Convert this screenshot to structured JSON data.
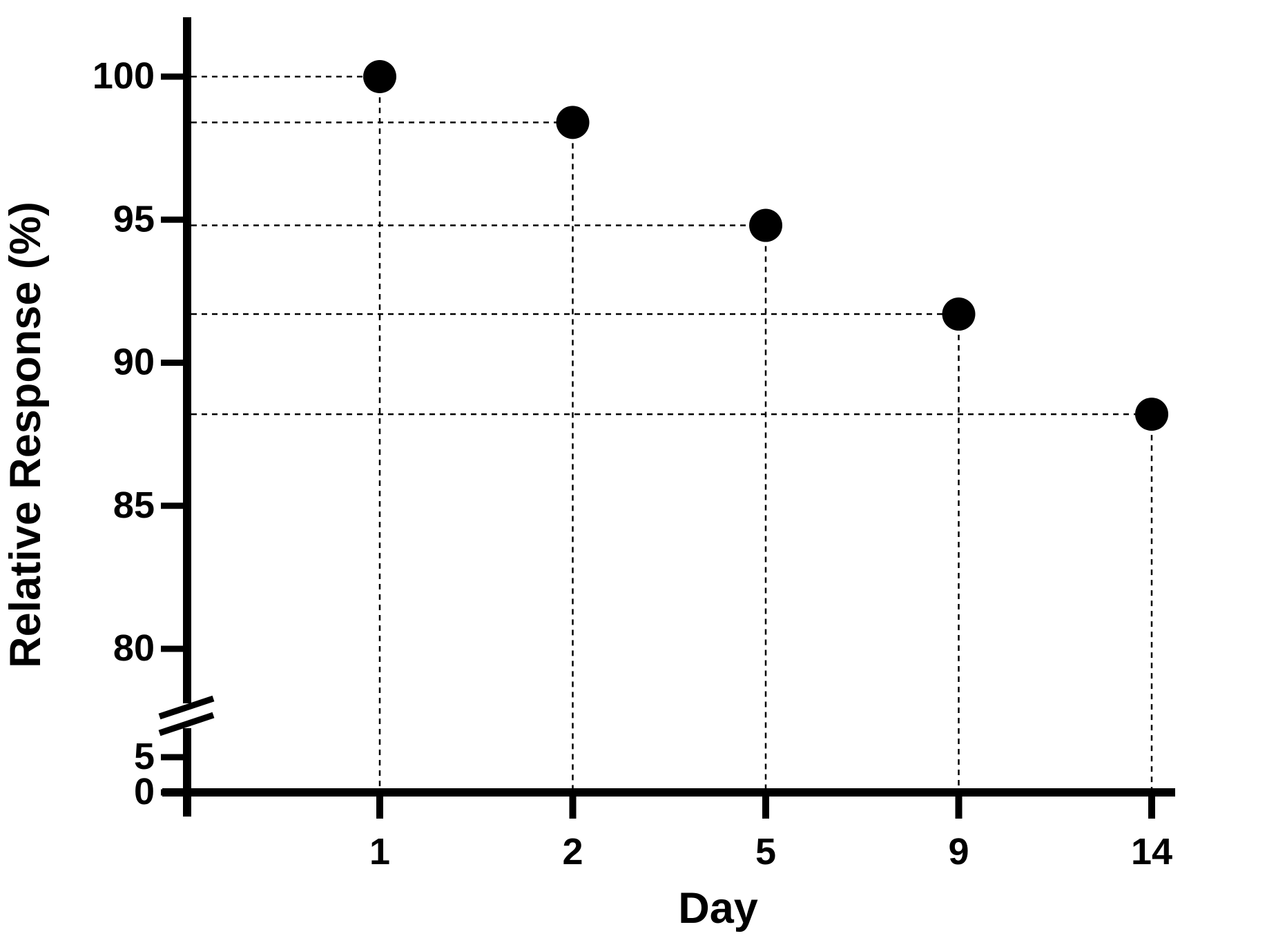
{
  "page": {
    "background_color": "#FFFFFF",
    "foreground_color": "#000000"
  },
  "chart_data": {
    "type": "scatter",
    "title": "",
    "xlabel": "Day",
    "ylabel": "Relative Response (%)",
    "x_scale": "categorical-equal-spacing",
    "categories": [
      "1",
      "2",
      "5",
      "9",
      "14"
    ],
    "x": [
      1,
      2,
      5,
      9,
      14
    ],
    "y": [
      100.0,
      98.4,
      94.8,
      91.7,
      88.2
    ],
    "points": [
      {
        "day": 1,
        "relative_response_pct": 100.0
      },
      {
        "day": 2,
        "relative_response_pct": 98.4
      },
      {
        "day": 5,
        "relative_response_pct": 94.8
      },
      {
        "day": 9,
        "relative_response_pct": 91.7
      },
      {
        "day": 14,
        "relative_response_pct": 88.2
      }
    ],
    "series": [
      {
        "name": "Relative Response",
        "values": [
          100.0,
          98.4,
          94.8,
          91.7,
          88.2
        ]
      }
    ],
    "marker": {
      "shape": "filled-circle",
      "color": "#000000"
    },
    "guide_lines": {
      "style": "dotted",
      "color": "#000000",
      "from_point_to_y_axis": true,
      "from_point_to_x_axis": true
    },
    "y_axis": {
      "upper_ticks": [
        100,
        95,
        90,
        85,
        80
      ],
      "lower_ticks": [
        5,
        0
      ],
      "axis_break": true,
      "upper_segment_range": [
        80,
        102
      ],
      "lower_segment_range": [
        0,
        7
      ]
    },
    "grid": false,
    "legend": null
  }
}
